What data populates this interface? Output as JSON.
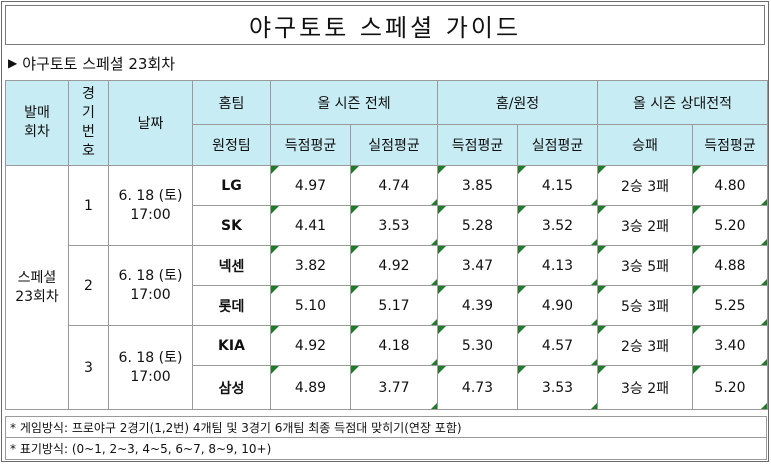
{
  "title": "야구토토 스페셜 가이드",
  "subtitle": "야구토토 스페셜 23회차",
  "headers": {
    "round": "발매\n회차",
    "game_no": "경\n기\n번\n호",
    "date": "날짜",
    "home_team": "홈팀",
    "away_team": "원정팀",
    "season_total": "올 시즌 전체",
    "home_away": "홈/원정",
    "h2h": "올 시즌 상대전적",
    "avg_scored": "득점평균",
    "avg_allowed": "실점평균",
    "win_loss": "승패"
  },
  "round_label": "스페셜\n23회차",
  "games": [
    {
      "no": "1",
      "date": "6. 18 (토)\n17:00",
      "teams": [
        {
          "name": "LG",
          "season_scored": "4.97",
          "season_allowed": "4.74",
          "ha_scored": "3.85",
          "ha_allowed": "4.15",
          "record": "2승 3패",
          "h2h_scored": "4.80"
        },
        {
          "name": "SK",
          "season_scored": "4.41",
          "season_allowed": "3.53",
          "ha_scored": "5.28",
          "ha_allowed": "3.52",
          "record": "3승 2패",
          "h2h_scored": "5.20"
        }
      ]
    },
    {
      "no": "2",
      "date": "6. 18 (토)\n17:00",
      "teams": [
        {
          "name": "넥센",
          "season_scored": "3.82",
          "season_allowed": "4.92",
          "ha_scored": "3.47",
          "ha_allowed": "4.13",
          "record": "3승 5패",
          "h2h_scored": "4.88"
        },
        {
          "name": "롯데",
          "season_scored": "5.10",
          "season_allowed": "5.17",
          "ha_scored": "4.39",
          "ha_allowed": "4.90",
          "record": "5승 3패",
          "h2h_scored": "5.25"
        }
      ]
    },
    {
      "no": "3",
      "date": "6. 18 (토)\n17:00",
      "teams": [
        {
          "name": "KIA",
          "season_scored": "4.92",
          "season_allowed": "4.18",
          "ha_scored": "5.30",
          "ha_allowed": "4.57",
          "record": "2승 3패",
          "h2h_scored": "3.40"
        },
        {
          "name": "삼성",
          "season_scored": "4.89",
          "season_allowed": "3.77",
          "ha_scored": "4.73",
          "ha_allowed": "3.53",
          "record": "3승 2패",
          "h2h_scored": "5.20"
        }
      ]
    }
  ],
  "notes": [
    "* 게임방식: 프로야구 2경기(1,2번) 4개팀 및 3경기 6개팀 최종 득점대 맞히기(연장 포함)",
    "* 표기방식: (0~1, 2~3, 4~5, 6~7, 8~9, 10+)"
  ],
  "colors": {
    "header_bg": "#c8ecf4",
    "corner_mark": "#1f7a2a",
    "border": "#9a9a9a"
  }
}
